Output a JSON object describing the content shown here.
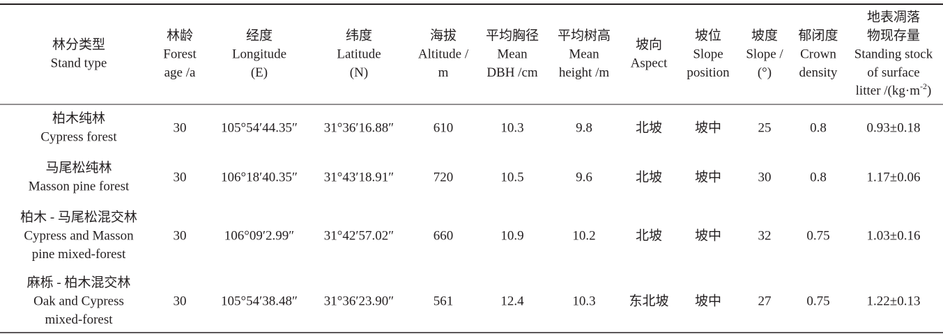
{
  "table": {
    "header": [
      [
        "林分类型",
        "Stand type"
      ],
      [
        "林龄",
        "Forest",
        "age /a"
      ],
      [
        "经度",
        "Longitude",
        "(E)"
      ],
      [
        "纬度",
        "Latitude",
        "(N)"
      ],
      [
        "海拔",
        "Altitude /",
        "m"
      ],
      [
        "平均胸径",
        "Mean",
        "DBH /cm"
      ],
      [
        "平均树高",
        "Mean",
        "height /m"
      ],
      [
        "坡向",
        "Aspect"
      ],
      [
        "坡位",
        "Slope",
        "position"
      ],
      [
        "坡度",
        "Slope /",
        "(°)"
      ],
      [
        "郁闭度",
        "Crown",
        "density"
      ],
      [
        "地表凋落",
        "物现存量",
        "Standing stock",
        "of surface",
        [
          "litter /(kg·m",
          "-2",
          ")"
        ]
      ]
    ],
    "rows": [
      {
        "stand_type": [
          "柏木纯林",
          "Cypress forest"
        ],
        "cells": [
          "30",
          "105°54′44.35″",
          "31°36′16.88″",
          "610",
          "10.3",
          "9.8",
          "北坡",
          "坡中",
          "25",
          "0.8",
          "0.93±0.18"
        ]
      },
      {
        "stand_type": [
          "马尾松纯林",
          "Masson pine forest"
        ],
        "cells": [
          "30",
          "106°18′40.35″",
          "31°43′18.91″",
          "720",
          "10.5",
          "9.6",
          "北坡",
          "坡中",
          "30",
          "0.8",
          "1.17±0.06"
        ]
      },
      {
        "stand_type": [
          "柏木 - 马尾松混交林",
          "Cypress and Masson",
          "pine mixed-forest"
        ],
        "cells": [
          "30",
          "106°09′2.99″",
          "31°42′57.02″",
          "660",
          "10.9",
          "10.2",
          "北坡",
          "坡中",
          "32",
          "0.75",
          "1.03±0.16"
        ]
      },
      {
        "stand_type": [
          "麻栎 - 柏木混交林",
          "Oak and Cypress",
          "mixed-forest"
        ],
        "cells": [
          "30",
          "105°54′38.48″",
          "31°36′23.90″",
          "561",
          "12.4",
          "10.3",
          "东北坡",
          "坡中",
          "27",
          "0.75",
          "1.22±0.13"
        ]
      }
    ]
  }
}
